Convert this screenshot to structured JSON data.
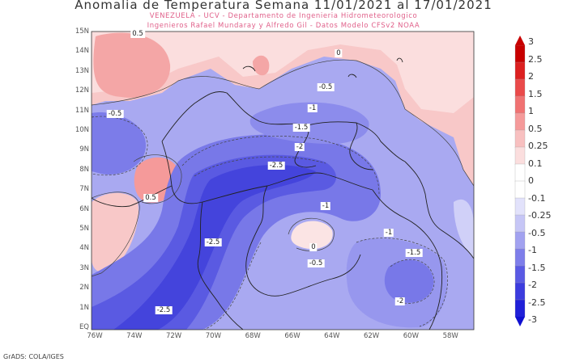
{
  "title": "Anomalia de Temperatura Semana 11/01/2021 al 17/01/2021",
  "subtitle1": "VENEZUELA - UCV - Departamento de Ingenieria Hidrometeorologico",
  "subtitle2": "Ingenieros Rafael Mundaray y Alfredo Gil - Datos Modelo CFSv2 NOAA",
  "lat_ticks": [
    "15N",
    "14N",
    "13N",
    "12N",
    "11N",
    "10N",
    "9N",
    "8N",
    "7N",
    "6N",
    "5N",
    "4N",
    "3N",
    "2N",
    "1N",
    "EQ"
  ],
  "lon_ticks": [
    "76W",
    "74W",
    "72W",
    "70W",
    "68W",
    "66W",
    "64W",
    "62W",
    "60W",
    "58W"
  ],
  "contour_labels": [
    "0.5",
    "0.5",
    "-0.5",
    "0",
    "-0.5",
    "-1",
    "-1.5",
    "-2",
    "-2.5",
    "-1",
    "-2.5",
    "0",
    "-0.5",
    "-1",
    "-1.5",
    "-2.5",
    "-2"
  ],
  "colorbar": {
    "labels": [
      "3",
      "2.5",
      "2",
      "1.5",
      "1",
      "0.5",
      "0.25",
      "0.1",
      "0",
      "-0.1",
      "-0.25",
      "-0.5",
      "-1",
      "-1.5",
      "-2",
      "-2.5",
      "-3"
    ],
    "colors": [
      "#c80000",
      "#dc2020",
      "#ea4a4a",
      "#f07272",
      "#f59a9a",
      "#f8c0c0",
      "#fbdede",
      "#ffffff",
      "#ffffff",
      "#e2e2fb",
      "#c6c6f6",
      "#a2a2f0",
      "#7e7eea",
      "#5a5ae4",
      "#3c3cde",
      "#2020d8"
    ]
  },
  "footer": "GrADS: COLA/IGES"
}
